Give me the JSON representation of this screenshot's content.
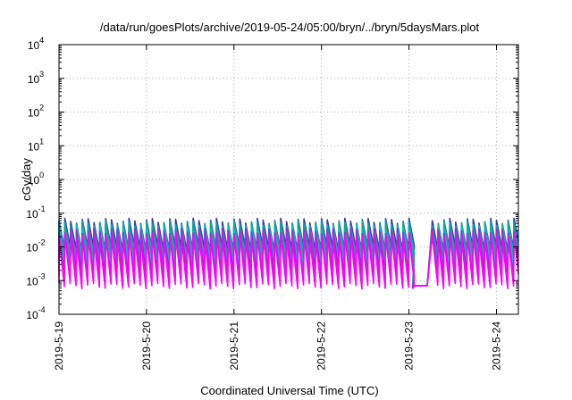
{
  "chart_data": {
    "type": "line",
    "title": "/data/run/goesPlots/archive/2019-05-24/05:00/bryn/../bryn/5daysMars.plot",
    "xlabel": "Coordinated Universal Time (UTC)",
    "ylabel": "cGy/day",
    "yscale": "log",
    "ylim": [
      0.0001,
      10000
    ],
    "xlim": [
      "2019-05-19T00:00",
      "2019-05-24T06:00"
    ],
    "grid": true,
    "x_ticks": [
      "2019-5-19",
      "2019-5-20",
      "2019-5-21",
      "2019-5-22",
      "2019-5-23",
      "2019-5-24"
    ],
    "y_ticks": [
      {
        "base": "10",
        "exp": "-4"
      },
      {
        "base": "10",
        "exp": "-3"
      },
      {
        "base": "10",
        "exp": "-2"
      },
      {
        "base": "10",
        "exp": "-1"
      },
      {
        "base": "10",
        "exp": "0"
      },
      {
        "base": "10",
        "exp": "1"
      },
      {
        "base": "10",
        "exp": "2"
      },
      {
        "base": "10",
        "exp": "3"
      },
      {
        "base": "10",
        "exp": "4"
      }
    ],
    "cycle_hours": 1.6,
    "peak_times": [
      "2019-05-19T00:00",
      "2019-05-19T01:36",
      "2019-05-19T03:12",
      "2019-05-19T04:48",
      "2019-05-19T06:24",
      "2019-05-19T08:00",
      "2019-05-19T09:36",
      "2019-05-19T11:12",
      "2019-05-19T12:48",
      "2019-05-19T14:24",
      "2019-05-19T16:00",
      "2019-05-19T17:36",
      "2019-05-19T19:12",
      "2019-05-19T20:48",
      "2019-05-19T22:24",
      "2019-05-20T00:00",
      "2019-05-20T01:36",
      "2019-05-20T03:12",
      "2019-05-20T04:48",
      "2019-05-20T06:24",
      "2019-05-20T08:00",
      "2019-05-20T09:36",
      "2019-05-20T11:12",
      "2019-05-20T12:48",
      "2019-05-20T14:24",
      "2019-05-20T16:00",
      "2019-05-20T17:36",
      "2019-05-20T19:12",
      "2019-05-20T20:48",
      "2019-05-20T22:24",
      "2019-05-21T00:00",
      "2019-05-21T01:36",
      "2019-05-21T03:12",
      "2019-05-21T04:48",
      "2019-05-21T06:24",
      "2019-05-21T08:00",
      "2019-05-21T09:36",
      "2019-05-21T11:12",
      "2019-05-21T12:48",
      "2019-05-21T14:24",
      "2019-05-21T16:00",
      "2019-05-21T17:36",
      "2019-05-21T19:12",
      "2019-05-21T20:48",
      "2019-05-21T22:24",
      "2019-05-22T00:00",
      "2019-05-22T01:36",
      "2019-05-22T03:12",
      "2019-05-22T04:48",
      "2019-05-22T06:24",
      "2019-05-22T08:00",
      "2019-05-22T09:36",
      "2019-05-22T11:12",
      "2019-05-22T12:48",
      "2019-05-22T14:24",
      "2019-05-22T16:00",
      "2019-05-22T17:36",
      "2019-05-22T19:12",
      "2019-05-22T20:48",
      "2019-05-22T22:24",
      "2019-05-23T00:00",
      "2019-05-23T06:24",
      "2019-05-23T08:00",
      "2019-05-23T09:36",
      "2019-05-23T11:12",
      "2019-05-23T12:48",
      "2019-05-23T14:24",
      "2019-05-23T16:00",
      "2019-05-23T17:36",
      "2019-05-23T19:12",
      "2019-05-23T20:48",
      "2019-05-23T22:24",
      "2019-05-24T00:00",
      "2019-05-24T01:36",
      "2019-05-24T03:12",
      "2019-05-24T04:48"
    ],
    "gap": {
      "start": "2019-05-23T01:00",
      "end": "2019-05-23T05:00",
      "min_value": 0.0006,
      "floor_value": 0.0007
    },
    "series": [
      {
        "color": "#3a3aa8",
        "peak": 0.06,
        "trough": 0.009
      },
      {
        "color": "#00a8c8",
        "peak": 0.05,
        "trough": 0.006
      },
      {
        "color": "#1fa37a",
        "peak": 0.045,
        "trough": 0.004
      },
      {
        "color": "#00c0d0",
        "peak": 0.035,
        "trough": 0.0025
      },
      {
        "color": "#8a2be2",
        "peak": 0.03,
        "trough": 0.0016
      },
      {
        "color": "#d020c0",
        "peak": 0.025,
        "trough": 0.0011
      },
      {
        "color": "#ff00ff",
        "peak": 0.02,
        "trough": 0.0007
      }
    ]
  }
}
